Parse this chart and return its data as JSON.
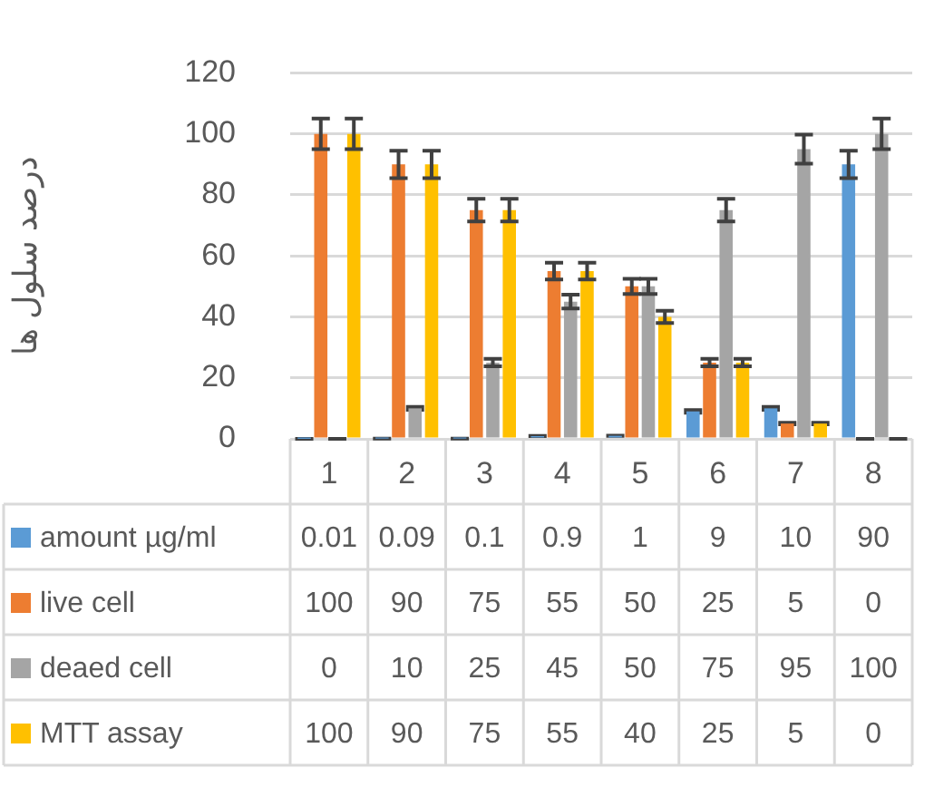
{
  "chart_data": {
    "type": "bar",
    "ylabel": "درصد سلول ها",
    "categories": [
      "1",
      "2",
      "3",
      "4",
      "5",
      "6",
      "7",
      "8"
    ],
    "series": [
      {
        "name": "amount µg/ml",
        "color": "#5b9bd5",
        "values": [
          0.01,
          0.09,
          0.1,
          0.9,
          1,
          9,
          10,
          90
        ],
        "errors": [
          0.0005,
          0.0045,
          0.005,
          0.045,
          0.05,
          0.45,
          0.5,
          4.5
        ]
      },
      {
        "name": "live cell",
        "color": "#ed7d31",
        "values": [
          100,
          90,
          75,
          55,
          50,
          25,
          5,
          0
        ],
        "errors": [
          5,
          4.5,
          3.75,
          2.75,
          2.5,
          1.25,
          0.25,
          0
        ]
      },
      {
        "name": "deaed cell",
        "color": "#a5a5a5",
        "values": [
          0,
          10,
          25,
          45,
          50,
          75,
          95,
          100
        ],
        "errors": [
          0,
          0.5,
          1.25,
          2.25,
          2.5,
          3.75,
          4.75,
          5
        ]
      },
      {
        "name": "MTT assay",
        "color": "#ffc000",
        "values": [
          100,
          90,
          75,
          55,
          40,
          25,
          5,
          0
        ],
        "errors": [
          5,
          4.5,
          3.75,
          2.75,
          2,
          1.25,
          0.25,
          0
        ]
      }
    ],
    "ylim": [
      0,
      120
    ],
    "yticks": [
      0,
      20,
      40,
      60,
      80,
      100,
      120
    ],
    "grid": "y",
    "legend": "bottom",
    "data_labels": true
  }
}
